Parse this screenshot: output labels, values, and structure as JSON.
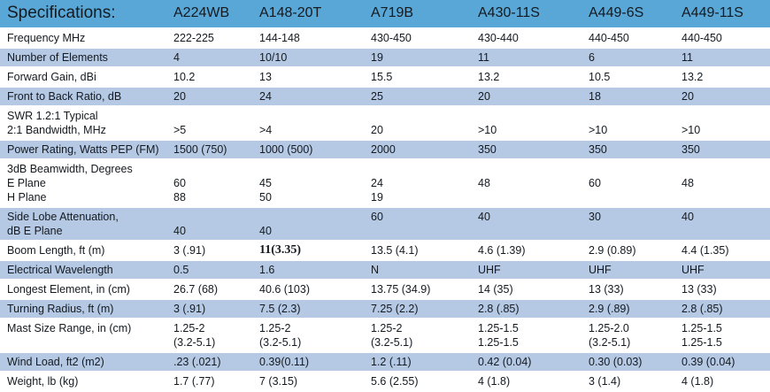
{
  "colors": {
    "header_bg": "#58a7d7",
    "stripe_bg": "#b5c9e4",
    "row_bg": "#ffffff",
    "text": "#141a20"
  },
  "table": {
    "columns": [
      "Specifications:",
      "A224WB",
      "A148-20T",
      "A719B",
      "A430-11S",
      "A449-6S",
      "A449-11S"
    ],
    "rows": [
      {
        "label": "Frequency MHz",
        "values": [
          "222-225",
          "144-148",
          "430-450",
          "430-440",
          "440-450",
          "440-450"
        ],
        "shade": false
      },
      {
        "label": "Number of Elements",
        "values": [
          "4",
          "10/10",
          "19",
          "11",
          "6",
          "11"
        ],
        "shade": true
      },
      {
        "label": "Forward Gain, dBi",
        "values": [
          "10.2",
          "13",
          "15.5",
          "13.2",
          "10.5",
          "13.2"
        ],
        "shade": false
      },
      {
        "label": "Front to Back Ratio, dB",
        "values": [
          "20",
          "24",
          "25",
          "20",
          "18",
          "20"
        ],
        "shade": true
      },
      {
        "label": "SWR 1.2:1 Typical\n2:1 Bandwidth, MHz",
        "values": [
          "\n>5",
          "\n>4",
          "\n20",
          "\n>10",
          "\n>10",
          "\n>10"
        ],
        "shade": false
      },
      {
        "label": "Power Rating, Watts PEP (FM)",
        "values": [
          "1500 (750)",
          "1000 (500)",
          "2000",
          "350",
          "350",
          "350"
        ],
        "shade": true
      },
      {
        "label": "3dB Beamwidth, Degrees\nE Plane\nH Plane",
        "values": [
          "\n60\n88",
          "\n45\n50",
          "\n24\n19",
          "\n48",
          "\n60",
          "\n48"
        ],
        "shade": false
      },
      {
        "label": "Side Lobe Attenuation,\ndB E Plane",
        "values": [
          "\n40",
          "\n40",
          "60",
          "40",
          "30",
          "40"
        ],
        "shade": true
      },
      {
        "label": "Boom Length, ft (m)",
        "values": [
          "3 (.91)",
          "11(3.35)",
          "13.5 (4.1)",
          "4.6 (1.39)",
          "2.9 (0.89)",
          "4.4 (1.35)"
        ],
        "shade": false,
        "bold": [
          1
        ]
      },
      {
        "label": "Electrical Wavelength",
        "values": [
          "0.5",
          "1.6",
          "N",
          "UHF",
          "UHF",
          "UHF"
        ],
        "shade": true
      },
      {
        "label": "Longest Element, in (cm)",
        "values": [
          "26.7 (68)",
          "40.6 (103)",
          "13.75 (34.9)",
          "14 (35)",
          "13 (33)",
          "13 (33)"
        ],
        "shade": false
      },
      {
        "label": "Turning Radius, ft (m)",
        "values": [
          "3 (.91)",
          "7.5 (2.3)",
          "7.25 (2.2)",
          "2.8 (.85)",
          "2.9 (.89)",
          "2.8 (.85)"
        ],
        "shade": true
      },
      {
        "label": "Mast Size Range, in (cm)",
        "values": [
          "1.25-2\n(3.2-5.1)",
          "1.25-2\n(3.2-5.1)",
          "1.25-2\n(3.2-5.1)",
          "1.25-1.5\n1.25-1.5",
          "1.25-2.0\n(3.2-5.1)",
          "1.25-1.5\n1.25-1.5"
        ],
        "shade": false
      },
      {
        "label": "Wind Load, ft2 (m2)",
        "values": [
          ".23 (.021)",
          "0.39(0.11)",
          "1.2 (.11)",
          "0.42 (0.04)",
          "0.30 (0.03)",
          "0.39 (0.04)"
        ],
        "shade": true
      },
      {
        "label": "Weight, lb (kg)",
        "values": [
          "1.7 (.77)",
          "7 (3.15)",
          "5.6 (2.55)",
          "4 (1.8)",
          "3 (1.4)",
          "4 (1.8)"
        ],
        "shade": false
      }
    ]
  }
}
